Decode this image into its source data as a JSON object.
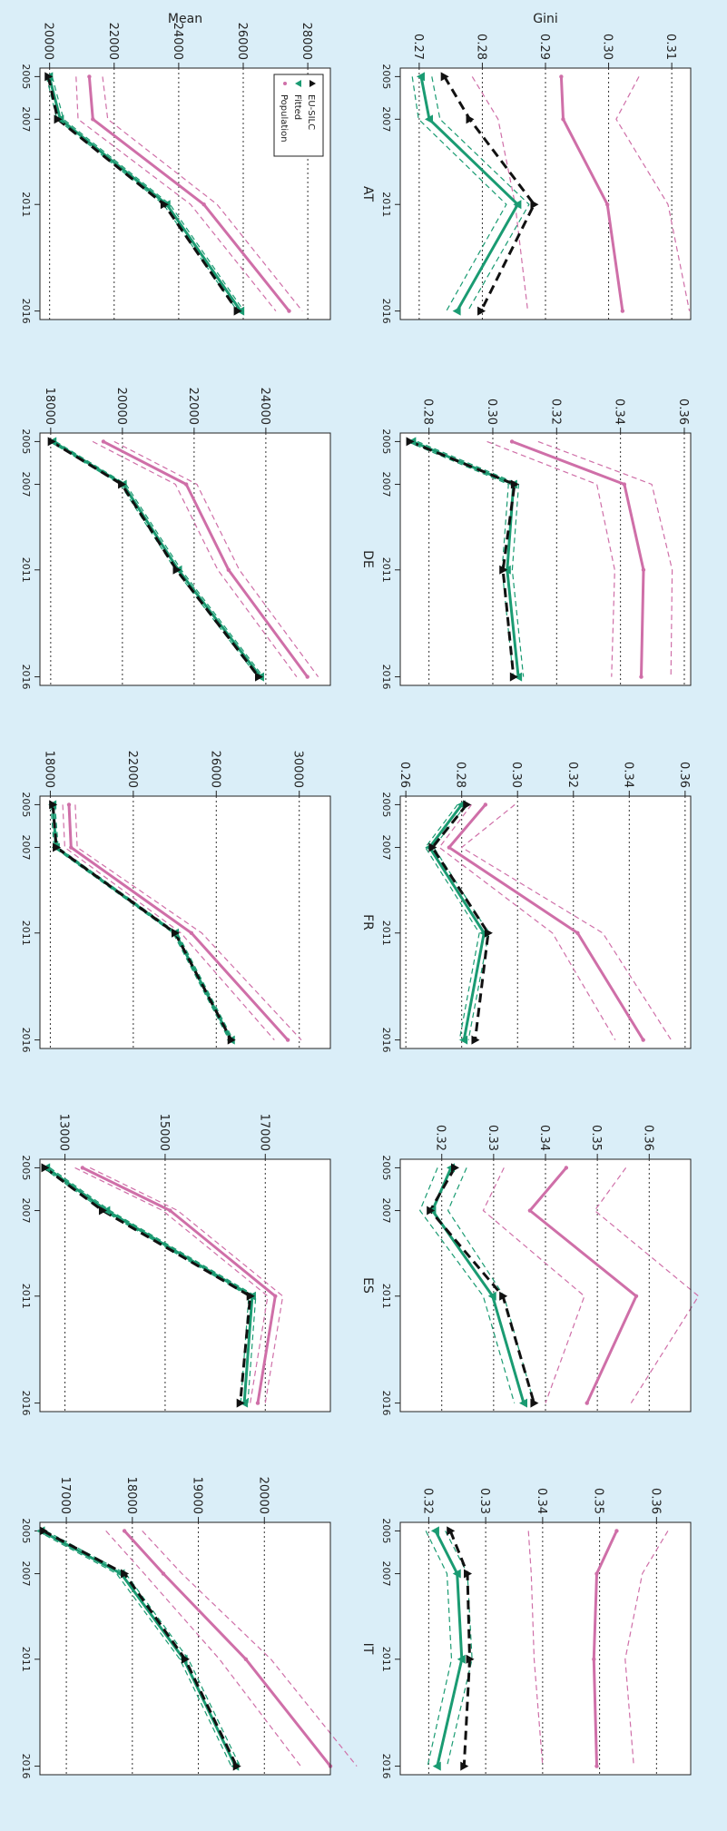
{
  "legend": {
    "items": [
      {
        "label": "EU-SILC",
        "color": "#111111",
        "marker": "triangle-up",
        "dash": "dashed"
      },
      {
        "label": "Fitted",
        "color": "#1a9b72",
        "marker": "triangle-down",
        "dash": "solid"
      },
      {
        "label": "Population",
        "color": "#cf6fa8",
        "marker": "dot",
        "dash": "solid"
      }
    ]
  },
  "row_labels": [
    "Gini",
    "Mean"
  ],
  "colors": {
    "silc": "#111111",
    "fitted": "#1a9b72",
    "population": "#cf6fa8",
    "background": "#daeef8"
  },
  "chart_data": [
    {
      "type": "line",
      "title": "AT",
      "ylabel": "Gini",
      "xlabel": "",
      "x": [
        2005,
        2007,
        2011,
        2016
      ],
      "xticks": [
        "2005",
        "2007",
        "2011",
        "2016"
      ],
      "ylim": [
        0.267,
        0.313
      ],
      "yticks": [
        0.27,
        0.28,
        0.29,
        0.3,
        0.31
      ],
      "ytick_labels": [
        "0.27",
        "0.28",
        "0.29",
        "0.30",
        "0.31"
      ],
      "series": [
        {
          "name": "Population",
          "values": [
            0.2925,
            0.2928,
            0.2998,
            0.3022
          ]
        },
        {
          "name": "pop_lower",
          "values": [
            0.2784,
            0.2825,
            0.2852,
            0.2872
          ]
        },
        {
          "name": "pop_upper",
          "values": [
            0.3048,
            0.3012,
            0.3094,
            0.3128
          ]
        },
        {
          "name": "EU-SILC",
          "values": [
            0.274,
            0.278,
            0.2882,
            0.2798
          ]
        },
        {
          "name": "Fitted",
          "values": [
            0.2703,
            0.2716,
            0.2856,
            0.276
          ]
        },
        {
          "name": "fit_lower",
          "values": [
            0.2689,
            0.2699,
            0.2838,
            0.2743
          ]
        },
        {
          "name": "fit_upper",
          "values": [
            0.272,
            0.2733,
            0.2874,
            0.2777
          ]
        }
      ]
    },
    {
      "type": "line",
      "title": "AT",
      "ylabel": "Mean",
      "xlabel": "",
      "x": [
        2005,
        2007,
        2011,
        2016
      ],
      "xticks": [
        "2005",
        "2007",
        "2011",
        "2016"
      ],
      "ylim": [
        19700,
        28700
      ],
      "yticks": [
        20000,
        22000,
        24000,
        26000,
        28000
      ],
      "ytick_labels": [
        "20000",
        "22000",
        "24000",
        "26000",
        "28000"
      ],
      "series": [
        {
          "name": "Population",
          "values": [
            21230,
            21340,
            24780,
            27420
          ]
        },
        {
          "name": "pop_lower",
          "values": [
            20820,
            20880,
            24370,
            27010
          ]
        },
        {
          "name": "pop_upper",
          "values": [
            21640,
            21800,
            25190,
            27830
          ]
        },
        {
          "name": "EU-SILC",
          "values": [
            19960,
            20250,
            23550,
            25820
          ]
        },
        {
          "name": "Fitted",
          "values": [
            19990,
            20330,
            23630,
            25920
          ]
        },
        {
          "name": "fit_lower",
          "values": [
            19900,
            20230,
            23530,
            25820
          ]
        },
        {
          "name": "fit_upper",
          "values": [
            20080,
            20430,
            23730,
            26020
          ]
        }
      ]
    },
    {
      "type": "line",
      "title": "DE",
      "ylabel": "",
      "xlabel": "",
      "x": [
        2005,
        2007,
        2011,
        2016
      ],
      "xticks": [
        "2005",
        "2007",
        "2011",
        "2016"
      ],
      "ylim": [
        0.271,
        0.362
      ],
      "yticks": [
        0.28,
        0.3,
        0.32,
        0.34,
        0.36
      ],
      "ytick_labels": [
        "0.28",
        "0.30",
        "0.32",
        "0.34",
        "0.36"
      ],
      "series": [
        {
          "name": "Population",
          "values": [
            0.306,
            0.3412,
            0.3472,
            0.3465
          ]
        },
        {
          "name": "pop_lower",
          "values": [
            0.2982,
            0.3326,
            0.3382,
            0.3372
          ]
        },
        {
          "name": "pop_upper",
          "values": [
            0.3142,
            0.3498,
            0.3562,
            0.3558
          ]
        },
        {
          "name": "EU-SILC",
          "values": [
            0.274,
            0.3068,
            0.3032,
            0.3065
          ]
        },
        {
          "name": "Fitted",
          "values": [
            0.2748,
            0.3065,
            0.3045,
            0.308
          ]
        },
        {
          "name": "fit_lower",
          "values": [
            0.2732,
            0.3049,
            0.3029,
            0.3064
          ]
        },
        {
          "name": "fit_upper",
          "values": [
            0.2764,
            0.3081,
            0.3061,
            0.3096
          ]
        }
      ]
    },
    {
      "type": "line",
      "title": "DE",
      "ylabel": "",
      "xlabel": "",
      "x": [
        2005,
        2007,
        2011,
        2016
      ],
      "xticks": [
        "2005",
        "2007",
        "2011",
        "2016"
      ],
      "ylim": [
        17700,
        25800
      ],
      "yticks": [
        18000,
        20000,
        22000,
        24000
      ],
      "ytick_labels": [
        "18000",
        "20000",
        "22000",
        "24000"
      ],
      "series": [
        {
          "name": "Population",
          "values": [
            19470,
            21780,
            22960,
            25160
          ]
        },
        {
          "name": "pop_lower",
          "values": [
            19170,
            21480,
            22660,
            24860
          ]
        },
        {
          "name": "pop_upper",
          "values": [
            19770,
            22080,
            23260,
            25460
          ]
        },
        {
          "name": "EU-SILC",
          "values": [
            18020,
            19980,
            21510,
            23800
          ]
        },
        {
          "name": "Fitted",
          "values": [
            18060,
            20020,
            21560,
            23850
          ]
        },
        {
          "name": "fit_lower",
          "values": [
            17980,
            19940,
            21480,
            23770
          ]
        },
        {
          "name": "fit_upper",
          "values": [
            18140,
            20100,
            21640,
            23930
          ]
        }
      ]
    },
    {
      "type": "line",
      "title": "FR",
      "ylabel": "",
      "xlabel": "",
      "x": [
        2005,
        2007,
        2011,
        2016
      ],
      "xticks": [
        "2005",
        "2007",
        "2011",
        "2016"
      ],
      "ylim": [
        0.258,
        0.362
      ],
      "yticks": [
        0.26,
        0.28,
        0.3,
        0.32,
        0.34,
        0.36
      ],
      "ytick_labels": [
        "0.26",
        "0.28",
        "0.30",
        "0.32",
        "0.34",
        "0.36"
      ],
      "series": [
        {
          "name": "Population",
          "values": [
            0.2885,
            0.2755,
            0.3215,
            0.345
          ]
        },
        {
          "name": "pop_lower",
          "values": [
            0.2835,
            0.272,
            0.3125,
            0.335
          ]
        },
        {
          "name": "pop_upper",
          "values": [
            0.299,
            0.28,
            0.3305,
            0.355
          ]
        },
        {
          "name": "EU-SILC",
          "values": [
            0.2818,
            0.2695,
            0.2895,
            0.2848
          ]
        },
        {
          "name": "Fitted",
          "values": [
            0.28,
            0.2685,
            0.288,
            0.2808
          ]
        },
        {
          "name": "fit_lower",
          "values": [
            0.2785,
            0.267,
            0.2863,
            0.2792
          ]
        },
        {
          "name": "fit_upper",
          "values": [
            0.2815,
            0.27,
            0.2897,
            0.2824
          ]
        }
      ]
    },
    {
      "type": "line",
      "title": "FR",
      "ylabel": "",
      "xlabel": "",
      "x": [
        2005,
        2007,
        2011,
        2016
      ],
      "xticks": [
        "2005",
        "2007",
        "2011",
        "2016"
      ],
      "ylim": [
        17500,
        31500
      ],
      "yticks": [
        18000,
        22000,
        26000,
        30000
      ],
      "ytick_labels": [
        "18000",
        "22000",
        "26000",
        "30000"
      ],
      "series": [
        {
          "name": "Population",
          "values": [
            18900,
            19000,
            24800,
            29450
          ]
        },
        {
          "name": "pop_lower",
          "values": [
            18600,
            18700,
            24300,
            28800
          ]
        },
        {
          "name": "pop_upper",
          "values": [
            19200,
            19300,
            25300,
            30100
          ]
        },
        {
          "name": "EU-SILC",
          "values": [
            18120,
            18290,
            24020,
            26720
          ]
        },
        {
          "name": "Fitted",
          "values": [
            18120,
            18280,
            24020,
            26720
          ]
        },
        {
          "name": "fit_lower",
          "values": [
            18020,
            18180,
            23920,
            26620
          ]
        },
        {
          "name": "fit_upper",
          "values": [
            18220,
            18380,
            24120,
            26820
          ]
        }
      ]
    },
    {
      "type": "line",
      "title": "ES",
      "ylabel": "",
      "xlabel": "",
      "x": [
        2005,
        2007,
        2011,
        2016
      ],
      "xticks": [
        "2005",
        "2007",
        "2011",
        "2016"
      ],
      "ylim": [
        0.312,
        0.368
      ],
      "yticks": [
        0.32,
        0.33,
        0.34,
        0.35,
        0.36
      ],
      "ytick_labels": [
        "0.32",
        "0.33",
        "0.34",
        "0.35",
        "0.36"
      ],
      "series": [
        {
          "name": "Population",
          "values": [
            0.344,
            0.337,
            0.3575,
            0.348
          ]
        },
        {
          "name": "pop_lower",
          "values": [
            0.332,
            0.328,
            0.3475,
            0.34
          ]
        },
        {
          "name": "pop_upper",
          "values": [
            0.3555,
            0.3495,
            0.3695,
            0.3565
          ]
        },
        {
          "name": "EU-SILC",
          "values": [
            0.3225,
            0.3178,
            0.3318,
            0.3378
          ]
        },
        {
          "name": "Fitted",
          "values": [
            0.3218,
            0.3182,
            0.3298,
            0.3358
          ]
        },
        {
          "name": "fit_lower",
          "values": [
            0.3192,
            0.3158,
            0.328,
            0.334
          ]
        },
        {
          "name": "fit_upper",
          "values": [
            0.3248,
            0.3212,
            0.332,
            0.3378
          ]
        }
      ]
    },
    {
      "type": "line",
      "title": "ES",
      "ylabel": "",
      "xlabel": "",
      "x": [
        2005,
        2007,
        2011,
        2016
      ],
      "xticks": [
        "2005",
        "2007",
        "2011",
        "2016"
      ],
      "ylim": [
        12500,
        18300
      ],
      "yticks": [
        13000,
        15000,
        17000
      ],
      "ytick_labels": [
        "13000",
        "15000",
        "17000"
      ],
      "series": [
        {
          "name": "Population",
          "values": [
            13350,
            15100,
            17200,
            16850
          ]
        },
        {
          "name": "pop_lower",
          "values": [
            13200,
            14950,
            17050,
            16700
          ]
        },
        {
          "name": "pop_upper",
          "values": [
            13500,
            15250,
            17350,
            17000
          ]
        },
        {
          "name": "EU-SILC",
          "values": [
            12600,
            13750,
            16700,
            16500
          ]
        },
        {
          "name": "Fitted",
          "values": [
            12630,
            13830,
            16740,
            16580
          ]
        },
        {
          "name": "fit_lower",
          "values": [
            12560,
            13760,
            16670,
            16510
          ]
        },
        {
          "name": "fit_upper",
          "values": [
            12700,
            13900,
            16810,
            16650
          ]
        }
      ]
    },
    {
      "type": "line",
      "title": "IT",
      "ylabel": "",
      "xlabel": "",
      "x": [
        2005,
        2007,
        2011,
        2016
      ],
      "xticks": [
        "2005",
        "2007",
        "2011",
        "2016"
      ],
      "ylim": [
        0.315,
        0.366
      ],
      "yticks": [
        0.32,
        0.33,
        0.34,
        0.35,
        0.36
      ],
      "ytick_labels": [
        "0.32",
        "0.33",
        "0.34",
        "0.35",
        "0.36"
      ],
      "series": [
        {
          "name": "Population",
          "values": [
            0.353,
            0.3495,
            0.349,
            0.3495
          ]
        },
        {
          "name": "pop_lower",
          "values": [
            0.3375,
            0.338,
            0.3385,
            0.34
          ]
        },
        {
          "name": "pop_upper",
          "values": [
            0.362,
            0.3575,
            0.3545,
            0.356
          ]
        },
        {
          "name": "EU-SILC",
          "values": [
            0.3238,
            0.3268,
            0.3272,
            0.3262
          ]
        },
        {
          "name": "Fitted",
          "values": [
            0.3212,
            0.325,
            0.3258,
            0.3215
          ]
        },
        {
          "name": "fit_lower",
          "values": [
            0.3195,
            0.3232,
            0.324,
            0.3198
          ]
        },
        {
          "name": "fit_upper",
          "values": [
            0.3229,
            0.3268,
            0.3276,
            0.3232
          ]
        }
      ]
    },
    {
      "type": "line",
      "title": "IT",
      "ylabel": "",
      "xlabel": "",
      "x": [
        2005,
        2007,
        2011,
        2016
      ],
      "xticks": [
        "2005",
        "2007",
        "2011",
        "2016"
      ],
      "ylim": [
        16600,
        21000
      ],
      "yticks": [
        17000,
        18000,
        19000,
        20000
      ],
      "ytick_labels": [
        "17000",
        "18000",
        "19000",
        "20000"
      ],
      "series": [
        {
          "name": "Population",
          "values": [
            17880,
            18470,
            19720,
            21000
          ]
        },
        {
          "name": "pop_lower",
          "values": [
            17600,
            18180,
            19320,
            20550
          ]
        },
        {
          "name": "pop_upper",
          "values": [
            18150,
            18750,
            20100,
            21400
          ]
        },
        {
          "name": "EU-SILC",
          "values": [
            16650,
            17880,
            18800,
            19580
          ]
        },
        {
          "name": "Fitted",
          "values": [
            16620,
            17830,
            18780,
            19560
          ]
        },
        {
          "name": "fit_lower",
          "values": [
            16560,
            17760,
            18720,
            19500
          ]
        },
        {
          "name": "fit_upper",
          "values": [
            16690,
            17900,
            18850,
            19630
          ]
        }
      ]
    }
  ]
}
